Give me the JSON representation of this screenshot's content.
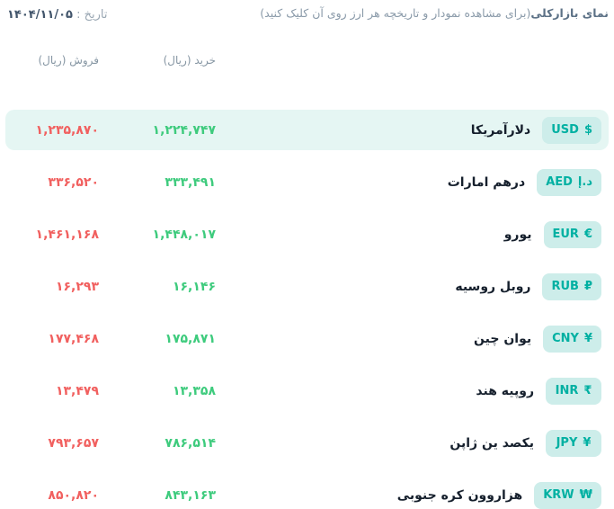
{
  "header": {
    "title_bold": "نمای بازارکلی",
    "title_rest": "(برای مشاهده نمودار و تاریخچه هر ارز روی آن کلیک کنید)",
    "date_label": "تاریخ :",
    "date_value": "۱۴۰۴/۱۱/۰۵"
  },
  "table": {
    "columns": {
      "buy": "خرید (ریال)",
      "sell": "فروش (ریال)"
    },
    "rows": [
      {
        "code": "USD",
        "symbol": "$",
        "name": "دلارآمریکا",
        "buy": "۱,۲۲۴,۷۴۷",
        "sell": "۱,۲۳۵,۸۷۰"
      },
      {
        "code": "AED",
        "symbol": "د.إ",
        "name": "درهم امارات",
        "buy": "۳۳۳,۴۹۱",
        "sell": "۳۳۶,۵۲۰"
      },
      {
        "code": "EUR",
        "symbol": "€",
        "name": "یورو",
        "buy": "۱,۴۴۸,۰۱۷",
        "sell": "۱,۴۶۱,۱۶۸"
      },
      {
        "code": "RUB",
        "symbol": "₽",
        "name": "روبل روسیه",
        "buy": "۱۶,۱۴۶",
        "sell": "۱۶,۲۹۳"
      },
      {
        "code": "CNY",
        "symbol": "¥",
        "name": "یوان چین",
        "buy": "۱۷۵,۸۷۱",
        "sell": "۱۷۷,۴۶۸"
      },
      {
        "code": "INR",
        "symbol": "₹",
        "name": "روپیه هند",
        "buy": "۱۳,۳۵۸",
        "sell": "۱۳,۴۷۹"
      },
      {
        "code": "JPY",
        "symbol": "¥",
        "name": "یکصد ین ژاپن",
        "buy": "۷۸۶,۵۱۴",
        "sell": "۷۹۳,۶۵۷"
      },
      {
        "code": "KRW",
        "symbol": "₩",
        "name": "هزاروون کره جنوبی",
        "buy": "۸۴۳,۱۶۳",
        "sell": "۸۵۰,۸۲۰"
      }
    ]
  },
  "colors": {
    "buy_green": "#3ecb7d",
    "sell_red": "#f1605f",
    "badge_text_teal": "#00b0a2",
    "badge_bg": "#cdedea",
    "highlight_row_bg": "#e5f6f3"
  }
}
